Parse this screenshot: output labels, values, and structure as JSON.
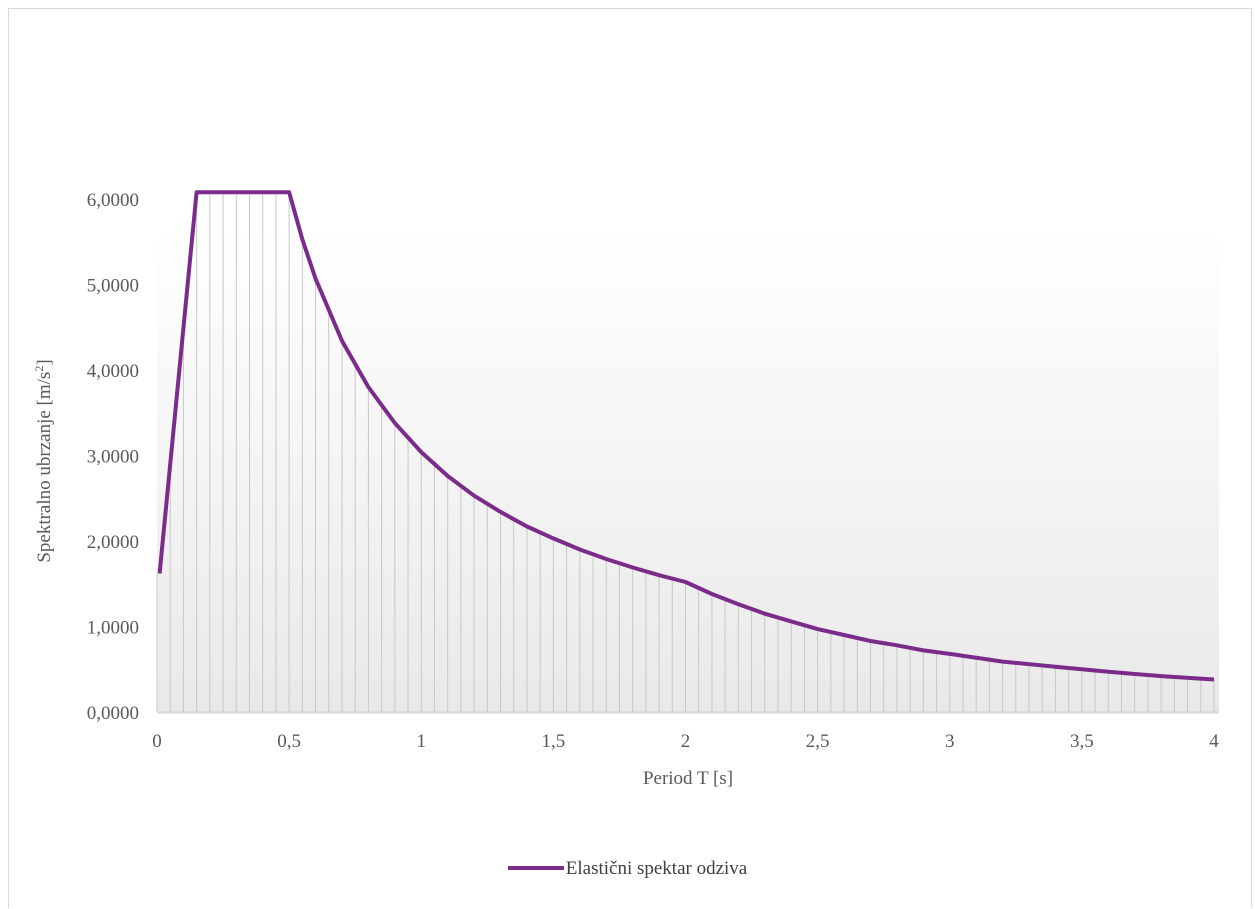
{
  "chart_data": {
    "type": "area",
    "title": "",
    "xlabel": "Period T [s]",
    "ylabel_main": "Spektralno ubrzanje [m/s",
    "ylabel_sup": "2",
    "ylabel_end": "]",
    "xlim": [
      0,
      4
    ],
    "ylim": [
      0,
      6
    ],
    "x_ticks": [
      0,
      0.5,
      1,
      1.5,
      2,
      2.5,
      3,
      3.5,
      4
    ],
    "x_tick_labels": [
      "0",
      "0,5",
      "1",
      "1,5",
      "2",
      "2,5",
      "3",
      "3,5",
      "4"
    ],
    "y_ticks": [
      0,
      1,
      2,
      3,
      4,
      5,
      6
    ],
    "y_tick_labels": [
      "0,0000",
      "1,0000",
      "2,0000",
      "3,0000",
      "4,0000",
      "5,0000",
      "6,0000"
    ],
    "legend_position": "bottom",
    "series": [
      {
        "name": "Elastični spektar odziva",
        "color": "#7b2c8a",
        "x": [
          0.01,
          0.15,
          0.2,
          0.3,
          0.4,
          0.5,
          0.55,
          0.6,
          0.7,
          0.8,
          0.9,
          1.0,
          1.1,
          1.2,
          1.3,
          1.4,
          1.5,
          1.6,
          1.7,
          1.8,
          1.9,
          2.0,
          2.1,
          2.2,
          2.3,
          2.4,
          2.5,
          2.6,
          2.7,
          2.8,
          2.9,
          3.0,
          3.2,
          3.4,
          3.6,
          3.8,
          4.0
        ],
        "values": [
          1.62,
          6.08,
          6.08,
          6.08,
          6.08,
          6.08,
          5.53,
          5.07,
          4.34,
          3.8,
          3.38,
          3.04,
          2.76,
          2.53,
          2.34,
          2.17,
          2.03,
          1.9,
          1.79,
          1.69,
          1.6,
          1.52,
          1.38,
          1.26,
          1.15,
          1.06,
          0.97,
          0.9,
          0.83,
          0.78,
          0.72,
          0.68,
          0.59,
          0.53,
          0.47,
          0.42,
          0.38
        ]
      }
    ]
  }
}
